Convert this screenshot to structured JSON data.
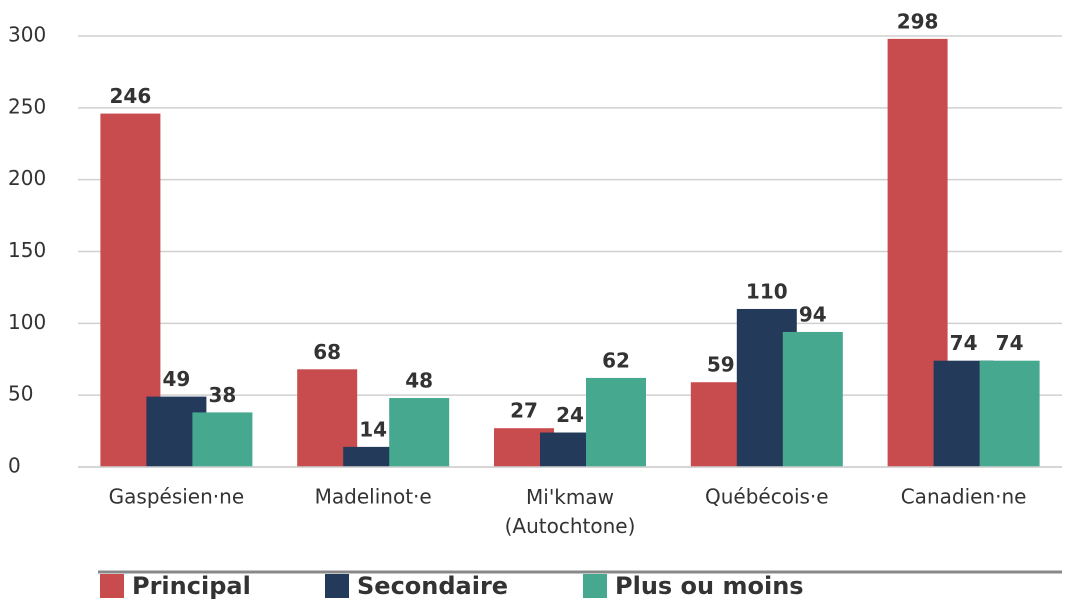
{
  "chart_data": {
    "type": "bar",
    "categories": [
      "Gaspésien·ne",
      "Madelinot·e",
      "Mi'kmaw (Autochtone)",
      "Québécois·e",
      "Canadien·ne"
    ],
    "series": [
      {
        "name": "Principal",
        "color": "#c84b4e",
        "values": [
          246,
          68,
          27,
          59,
          298
        ]
      },
      {
        "name": "Secondaire",
        "color": "#243a5a",
        "values": [
          49,
          14,
          24,
          110,
          74
        ]
      },
      {
        "name": "Plus ou moins",
        "color": "#45a88f",
        "values": [
          38,
          48,
          62,
          94,
          74
        ]
      }
    ],
    "ylim": [
      0,
      300
    ],
    "yticks": [
      0,
      50,
      100,
      150,
      200,
      250,
      300
    ],
    "grid": true,
    "legend": "bottom"
  }
}
